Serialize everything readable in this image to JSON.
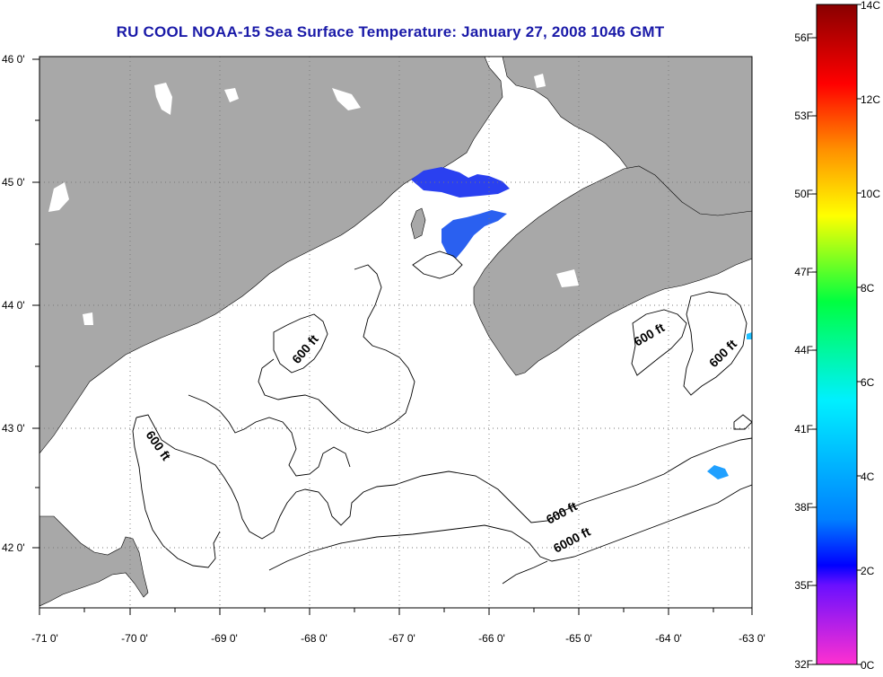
{
  "title": "RU COOL  NOAA-15  Sea Surface Temperature:  January 27, 2008 1046 GMT",
  "map": {
    "lon_labels": [
      "-71 0'",
      "-70 0'",
      "-69 0'",
      "-68 0'",
      "-67 0'",
      "-66 0'",
      "-65 0'",
      "-64 0'",
      "-63 0'"
    ],
    "lat_labels": [
      "46 0'",
      "45 0'",
      "44 0'",
      "43 0'",
      "42 0'"
    ],
    "contour_labels": [
      "600 ft",
      "600 ft",
      "600 ft",
      "600 ft",
      "600 ft",
      "6000 ft"
    ],
    "land_color": "#a8a8a8",
    "ocean_color": "#ffffff"
  },
  "colorbar": {
    "celsius_labels": [
      "14C",
      "12C",
      "10C",
      "8C",
      "6C",
      "4C",
      "2C",
      "0C"
    ],
    "fahrenheit_labels": [
      "56F",
      "53F",
      "50F",
      "47F",
      "44F",
      "41F",
      "38F",
      "35F",
      "32F"
    ]
  }
}
